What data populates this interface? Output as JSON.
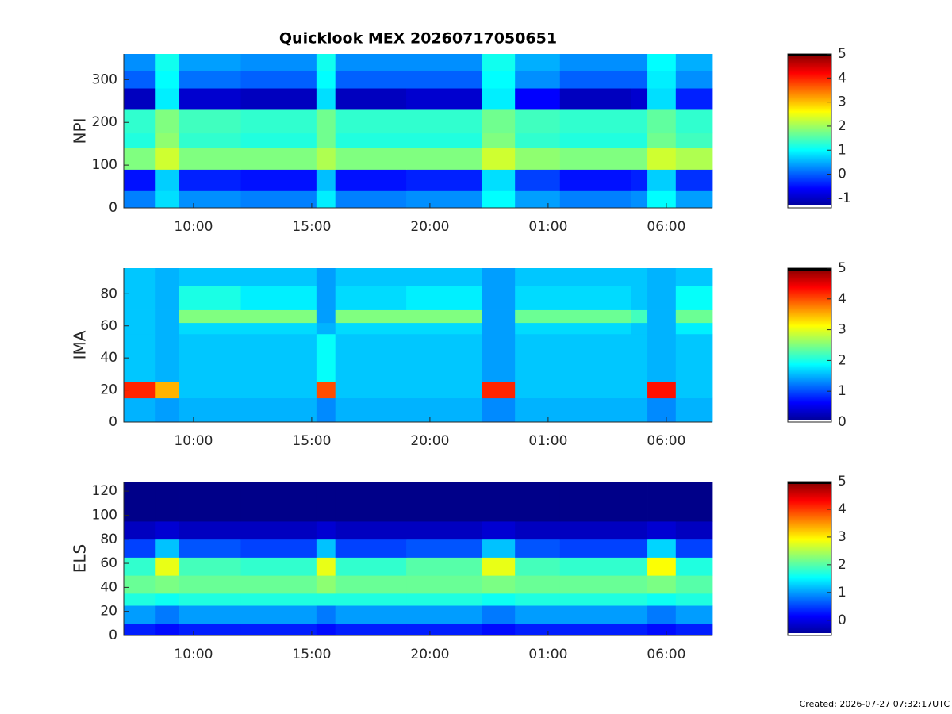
{
  "chart_data": [
    {
      "type": "heatmap",
      "title": "Quicklook MEX 20260717050651",
      "ylabel": "NPI",
      "colormap": "jet",
      "xlim": [
        7.05,
        31.95
      ],
      "xticks": [
        {
          "value": 10,
          "label": "10:00"
        },
        {
          "value": 15,
          "label": "15:00"
        },
        {
          "value": 20,
          "label": "20:00"
        },
        {
          "value": 25,
          "label": "01:00"
        },
        {
          "value": 30,
          "label": "06:00"
        }
      ],
      "ylim": [
        0,
        360
      ],
      "yticks": [
        0,
        100,
        200,
        300
      ],
      "clim": [
        -1.4,
        5
      ],
      "cticks": [
        -1,
        0,
        1,
        2,
        3,
        4,
        5
      ],
      "x_edges": [
        7.05,
        8.4,
        9.4,
        12,
        15.2,
        16,
        19,
        22.2,
        23.6,
        25.5,
        28.5,
        29.2,
        30.4,
        31.95
      ],
      "y_edges": [
        0,
        40,
        90,
        140,
        175,
        230,
        280,
        320,
        360
      ],
      "z": [
        [
          0.2,
          0.8,
          0.3,
          0.2,
          0.9,
          0.2,
          0.3,
          1.0,
          0.4,
          0.2,
          0.3,
          1.0,
          0.4
        ],
        [
          -0.5,
          0.7,
          -0.4,
          -0.5,
          0.6,
          -0.5,
          -0.4,
          0.8,
          -0.2,
          -0.5,
          -0.4,
          0.7,
          -0.3
        ],
        [
          1.8,
          2.3,
          1.8,
          1.8,
          2.1,
          1.8,
          1.8,
          2.3,
          1.9,
          1.8,
          1.8,
          2.3,
          2.1
        ],
        [
          1.2,
          1.9,
          1.3,
          1.2,
          1.7,
          1.2,
          1.2,
          1.8,
          1.3,
          1.2,
          1.2,
          1.7,
          1.4
        ],
        [
          1.3,
          1.8,
          1.4,
          1.3,
          1.7,
          1.3,
          1.3,
          1.7,
          1.4,
          1.3,
          1.3,
          1.6,
          1.3
        ],
        [
          -1.0,
          0.9,
          -0.9,
          -1.0,
          0.8,
          -1.0,
          -0.9,
          0.9,
          -0.6,
          -1.0,
          -0.9,
          0.8,
          -0.4
        ],
        [
          0.0,
          1.0,
          0.1,
          0.0,
          1.0,
          0.0,
          0.0,
          1.0,
          0.3,
          0.0,
          0.0,
          0.9,
          0.3
        ],
        [
          0.3,
          1.1,
          0.4,
          0.3,
          1.1,
          0.3,
          0.3,
          1.1,
          0.5,
          0.3,
          0.3,
          1.0,
          0.5
        ]
      ]
    },
    {
      "type": "heatmap",
      "ylabel": "IMA",
      "colormap": "jet",
      "xlim": [
        7.05,
        31.95
      ],
      "xticks": [
        {
          "value": 10,
          "label": "10:00"
        },
        {
          "value": 15,
          "label": "15:00"
        },
        {
          "value": 20,
          "label": "20:00"
        },
        {
          "value": 25,
          "label": "01:00"
        },
        {
          "value": 30,
          "label": "06:00"
        }
      ],
      "ylim": [
        0,
        96
      ],
      "yticks": [
        0,
        20,
        40,
        60,
        80
      ],
      "clim": [
        0,
        5
      ],
      "cticks": [
        0,
        1,
        2,
        3,
        4,
        5
      ],
      "x_edges": [
        7.05,
        8.4,
        9.4,
        12,
        15.2,
        16,
        19,
        22.2,
        23.6,
        25.5,
        28.5,
        29.2,
        30.4,
        31.95
      ],
      "y_edges": [
        0,
        15,
        25,
        55,
        62,
        70,
        85,
        96
      ],
      "z": [
        [
          1.5,
          1.4,
          1.5,
          1.5,
          1.3,
          1.5,
          1.5,
          1.3,
          1.5,
          1.5,
          1.5,
          1.3,
          1.5
        ],
        [
          4.2,
          3.5,
          1.6,
          1.6,
          4.0,
          1.6,
          1.6,
          4.2,
          1.6,
          1.6,
          1.6,
          4.3,
          1.6
        ],
        [
          1.6,
          1.5,
          1.6,
          1.6,
          1.9,
          1.6,
          1.6,
          1.4,
          1.6,
          1.6,
          1.6,
          1.5,
          1.6
        ],
        [
          1.6,
          1.5,
          1.7,
          1.7,
          1.5,
          1.7,
          1.7,
          1.4,
          1.7,
          1.7,
          1.6,
          1.5,
          1.8
        ],
        [
          1.6,
          1.5,
          2.5,
          2.5,
          1.4,
          2.5,
          2.5,
          1.4,
          2.4,
          2.4,
          2.2,
          1.5,
          2.4
        ],
        [
          1.6,
          1.5,
          2.0,
          1.8,
          1.4,
          1.7,
          1.8,
          1.4,
          1.7,
          1.7,
          1.6,
          1.5,
          1.9
        ],
        [
          1.6,
          1.5,
          1.6,
          1.6,
          1.4,
          1.6,
          1.6,
          1.4,
          1.6,
          1.6,
          1.6,
          1.5,
          1.6
        ]
      ]
    },
    {
      "type": "heatmap",
      "ylabel": "ELS",
      "colormap": "jet",
      "xlim": [
        7.05,
        31.95
      ],
      "xticks": [
        {
          "value": 10,
          "label": "10:00"
        },
        {
          "value": 15,
          "label": "15:00"
        },
        {
          "value": 20,
          "label": "20:00"
        },
        {
          "value": 25,
          "label": "01:00"
        },
        {
          "value": 30,
          "label": "06:00"
        }
      ],
      "ylim": [
        0,
        128
      ],
      "yticks": [
        0,
        20,
        40,
        60,
        80,
        100,
        120
      ],
      "clim": [
        -0.55,
        5
      ],
      "cticks": [
        0,
        1,
        2,
        3,
        4,
        5
      ],
      "x_edges": [
        7.05,
        8.4,
        9.4,
        12,
        15.2,
        16,
        19,
        22.2,
        23.6,
        25.5,
        28.5,
        29.2,
        30.4,
        31.95
      ],
      "y_edges": [
        0,
        10,
        25,
        35,
        50,
        65,
        80,
        95,
        128
      ],
      "z": [
        [
          0.3,
          0.2,
          0.3,
          0.3,
          0.2,
          0.3,
          0.3,
          0.2,
          0.3,
          0.3,
          0.3,
          0.2,
          0.3
        ],
        [
          1.0,
          0.8,
          1.0,
          1.0,
          0.8,
          1.0,
          1.0,
          0.8,
          1.0,
          1.0,
          1.0,
          0.8,
          1.0
        ],
        [
          1.7,
          1.6,
          1.7,
          1.7,
          1.7,
          1.7,
          1.7,
          1.6,
          1.7,
          1.7,
          1.7,
          1.6,
          1.7
        ],
        [
          2.1,
          2.2,
          2.1,
          2.1,
          2.3,
          2.1,
          2.1,
          2.2,
          2.1,
          2.1,
          2.1,
          2.2,
          2.0
        ],
        [
          1.8,
          2.8,
          1.9,
          1.8,
          2.8,
          1.8,
          2.0,
          2.8,
          1.9,
          1.8,
          1.8,
          2.9,
          1.7
        ],
        [
          0.5,
          1.2,
          0.6,
          0.5,
          1.2,
          0.5,
          0.6,
          1.2,
          0.6,
          0.5,
          0.5,
          1.3,
          0.5
        ],
        [
          -0.2,
          -0.1,
          -0.2,
          -0.2,
          -0.1,
          -0.2,
          -0.2,
          -0.1,
          -0.2,
          -0.2,
          -0.2,
          -0.1,
          -0.2
        ],
        [
          -0.5,
          -0.5,
          -0.5,
          -0.5,
          -0.5,
          -0.5,
          -0.5,
          -0.5,
          -0.5,
          -0.5,
          -0.5,
          -0.5,
          -0.5
        ]
      ]
    }
  ],
  "footer": "Created: 2026-07-27 07:32:17UTC"
}
